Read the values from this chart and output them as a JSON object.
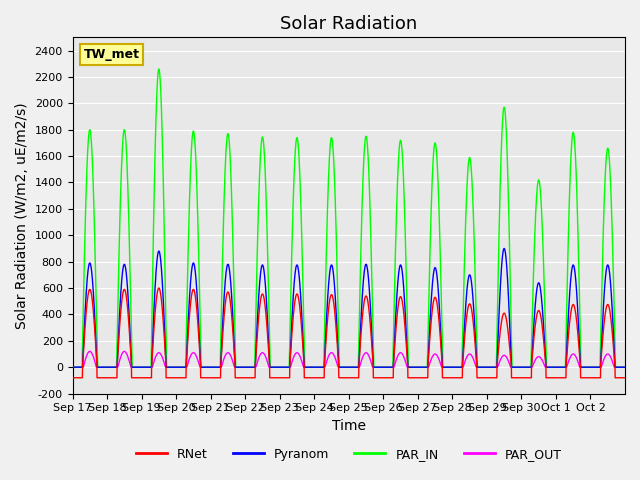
{
  "title": "Solar Radiation",
  "ylabel": "Solar Radiation (W/m2, uE/m2/s)",
  "xlabel": "Time",
  "ylim": [
    -200,
    2500
  ],
  "yticks": [
    -200,
    0,
    200,
    400,
    600,
    800,
    1000,
    1200,
    1400,
    1600,
    1800,
    2000,
    2200,
    2400
  ],
  "xlabels": [
    "Sep 17",
    "Sep 18",
    "Sep 19",
    "Sep 20",
    "Sep 21",
    "Sep 22",
    "Sep 23",
    "Sep 24",
    "Sep 25",
    "Sep 26",
    "Sep 27",
    "Sep 28",
    "Sep 29",
    "Sep 30",
    "Oct 1",
    "Oct 2"
  ],
  "station_label": "TW_met",
  "station_box_color": "#FFFF99",
  "station_box_edgecolor": "#CCAA00",
  "line_colors": {
    "RNet": "red",
    "Pyranom": "blue",
    "PAR_IN": "lime",
    "PAR_OUT": "magenta"
  },
  "background_color": "#f0f0f0",
  "plot_bg_color": "#e8e8e8",
  "grid_color": "white",
  "num_days": 16,
  "day_peaks": {
    "PAR_IN": [
      1800,
      1800,
      2260,
      1790,
      1770,
      1745,
      1740,
      1740,
      1750,
      1720,
      1700,
      1590,
      1970,
      1420,
      1780,
      1660
    ],
    "Pyranom": [
      790,
      780,
      880,
      790,
      780,
      775,
      775,
      775,
      780,
      775,
      755,
      700,
      900,
      640,
      775,
      775
    ],
    "RNet": [
      590,
      590,
      600,
      590,
      570,
      555,
      555,
      550,
      540,
      535,
      530,
      480,
      410,
      430,
      475,
      475
    ],
    "PAR_OUT": [
      120,
      120,
      110,
      110,
      110,
      110,
      110,
      110,
      110,
      110,
      100,
      100,
      90,
      80,
      100,
      100
    ]
  },
  "night_RNet": -80,
  "title_fontsize": 13,
  "label_fontsize": 10,
  "tick_fontsize": 8
}
